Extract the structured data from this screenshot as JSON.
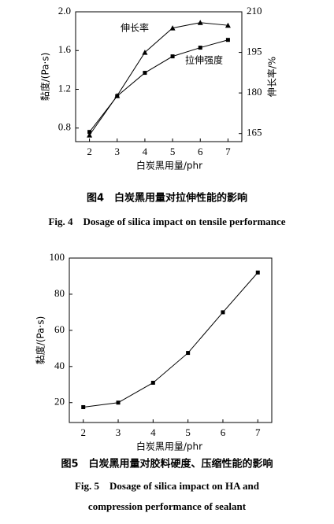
{
  "chart_data": [
    {
      "type": "line",
      "x": [
        2,
        3,
        4,
        5,
        6,
        7
      ],
      "xlim": [
        1.5,
        7.5
      ],
      "xticks": [
        2,
        3,
        4,
        5,
        6,
        7
      ],
      "xlabel": "白炭黑用量/phr",
      "ylabel": "黏度/(Pa·s)",
      "ylim": [
        0.66,
        2.0
      ],
      "yticks": [
        {
          "value": 0.8,
          "label": "0.8"
        },
        1.2,
        1.6,
        {
          "value": 2,
          "label": "2.0"
        }
      ],
      "y2label": "伸长率/%",
      "y2lim": [
        162,
        210
      ],
      "y2ticks": [
        165,
        180,
        195,
        210
      ],
      "series": [
        {
          "name": "伸长率",
          "axis": "y2",
          "marker": "triangle",
          "color": "#000000",
          "values": [
            164.4,
            179,
            195,
            204,
            206,
            205
          ]
        },
        {
          "name": "拉伸强度",
          "marker": "square",
          "color": "#000000",
          "values": [
            0.76,
            1.13,
            1.37,
            1.54,
            1.63,
            1.71
          ]
        }
      ],
      "caption": "图4　白炭黑用量对拉伸性能的影响",
      "caption_en": [
        "Fig. 4　Dosage of silica impact on tensile performance"
      ]
    },
    {
      "type": "line",
      "x": [
        2,
        3,
        4,
        5,
        6,
        7
      ],
      "xlim": [
        1.6,
        7.4
      ],
      "xticks": [
        2,
        3,
        4,
        5,
        6,
        7
      ],
      "xlabel": "白炭黑用量/phr",
      "ylabel": "黏度/(Pa·s)",
      "ylim": [
        9,
        100
      ],
      "yticks": [
        20,
        40,
        60,
        80,
        100
      ],
      "series": [
        {
          "marker": "square",
          "color": "#000000",
          "values": [
            17.5,
            20,
            31,
            47.5,
            70,
            92
          ]
        }
      ],
      "caption": "图5　白炭黑用量对胶料硬度、压缩性能的影响",
      "caption_en": [
        "Fig. 5　Dosage of silica impact on HA and",
        "compression performance of sealant"
      ]
    }
  ]
}
